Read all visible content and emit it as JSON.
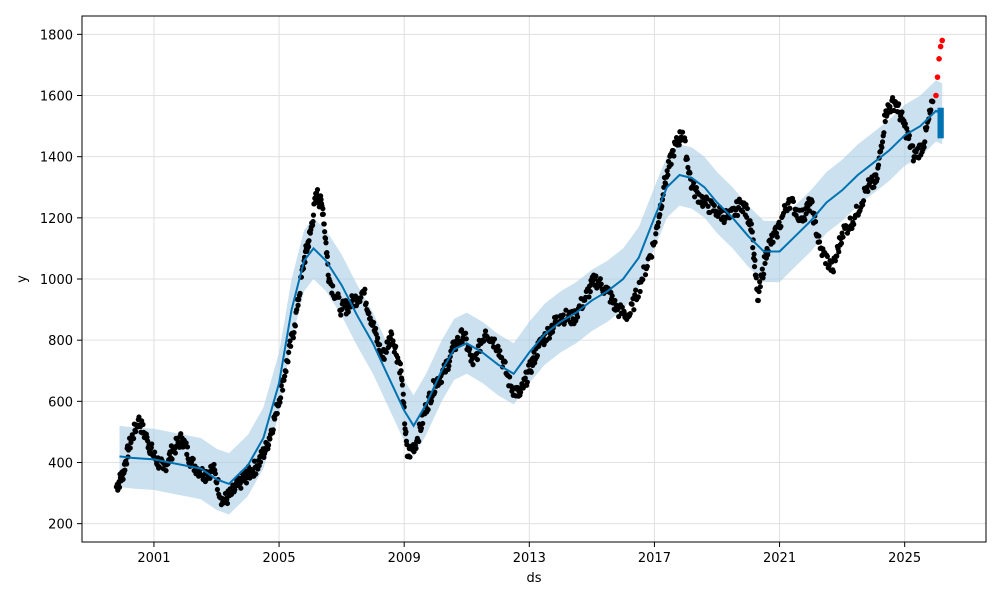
{
  "chart_data": {
    "type": "line",
    "title": "",
    "xlabel": "ds",
    "ylabel": "y",
    "xlim": [
      1998.7,
      2027.6
    ],
    "ylim": [
      140,
      1860
    ],
    "x_ticks": [
      2001,
      2005,
      2009,
      2013,
      2017,
      2021,
      2025
    ],
    "x_tick_labels": [
      "2001",
      "2005",
      "2009",
      "2013",
      "2017",
      "2021",
      "2025"
    ],
    "y_ticks": [
      200,
      400,
      600,
      800,
      1000,
      1200,
      1400,
      1600,
      1800
    ],
    "y_tick_labels": [
      "200",
      "400",
      "600",
      "800",
      "1000",
      "1200",
      "1400",
      "1600",
      "1800"
    ],
    "grid": true,
    "colors": {
      "observed": "#000000",
      "forecast": "#0072B2",
      "interval": "#A8CDE4",
      "anomaly": "#FF0000"
    },
    "forecast_x": [
      1999.9,
      2000.3,
      2001.0,
      2001.5,
      2002.0,
      2002.5,
      2003.0,
      2003.4,
      2004.0,
      2004.5,
      2005.0,
      2005.4,
      2005.8,
      2006.1,
      2006.5,
      2007.0,
      2007.5,
      2008.0,
      2008.5,
      2009.0,
      2009.3,
      2009.7,
      2010.2,
      2010.6,
      2011.0,
      2011.5,
      2012.0,
      2012.5,
      2013.0,
      2013.5,
      2014.0,
      2014.5,
      2015.0,
      2015.5,
      2016.0,
      2016.5,
      2017.0,
      2017.4,
      2017.8,
      2018.2,
      2018.6,
      2019.0,
      2019.5,
      2020.0,
      2020.5,
      2021.0,
      2021.5,
      2022.0,
      2022.5,
      2023.0,
      2023.5,
      2024.0,
      2024.5,
      2025.0,
      2025.5,
      2026.0,
      2026.2
    ],
    "forecast_y": [
      420,
      415,
      410,
      400,
      390,
      380,
      345,
      330,
      390,
      480,
      660,
      900,
      1060,
      1100,
      1060,
      980,
      880,
      790,
      680,
      570,
      520,
      590,
      700,
      770,
      790,
      760,
      720,
      690,
      760,
      820,
      860,
      890,
      930,
      960,
      1000,
      1070,
      1200,
      1300,
      1340,
      1330,
      1300,
      1250,
      1200,
      1140,
      1090,
      1090,
      1140,
      1190,
      1250,
      1290,
      1340,
      1380,
      1420,
      1470,
      1500,
      1550,
      1540
    ],
    "interval_half_width": 100,
    "observed_x": [
      1999.8,
      2000.0,
      2000.2,
      2000.5,
      2000.8,
      2001.0,
      2001.3,
      2001.6,
      2001.9,
      2002.2,
      2002.6,
      2002.9,
      2003.2,
      2003.5,
      2003.8,
      2004.0,
      2004.3,
      2004.6,
      2004.9,
      2005.2,
      2005.5,
      2005.8,
      2006.0,
      2006.2,
      2006.4,
      2006.6,
      2007.0,
      2007.3,
      2007.7,
      2008.0,
      2008.3,
      2008.6,
      2008.9,
      2009.1,
      2009.4,
      2009.7,
      2010.0,
      2010.3,
      2010.6,
      2010.9,
      2011.2,
      2011.6,
      2012.0,
      2012.4,
      2012.7,
      2013.0,
      2013.3,
      2013.7,
      2014.0,
      2014.4,
      2014.8,
      2015.1,
      2015.5,
      2015.8,
      2016.2,
      2016.6,
      2017.0,
      2017.3,
      2017.6,
      2017.9,
      2018.2,
      2018.6,
      2019.0,
      2019.4,
      2019.8,
      2020.1,
      2020.3,
      2020.6,
      2020.9,
      2021.3,
      2021.7,
      2022.0,
      2022.3,
      2022.7,
      2023.0,
      2023.4,
      2023.8,
      2024.1,
      2024.4,
      2024.7,
      2025.0,
      2025.3,
      2025.6,
      2025.9
    ],
    "observed_y": [
      320,
      360,
      450,
      540,
      470,
      420,
      380,
      440,
      480,
      400,
      360,
      380,
      270,
      300,
      340,
      360,
      390,
      450,
      560,
      700,
      850,
      1060,
      1150,
      1280,
      1230,
      1000,
      900,
      920,
      960,
      850,
      740,
      820,
      700,
      420,
      470,
      580,
      660,
      700,
      780,
      820,
      720,
      830,
      780,
      650,
      620,
      700,
      780,
      840,
      880,
      870,
      940,
      1000,
      960,
      900,
      880,
      1000,
      1120,
      1300,
      1420,
      1480,
      1300,
      1250,
      1220,
      1200,
      1250,
      1180,
      930,
      1100,
      1150,
      1260,
      1200,
      1250,
      1100,
      1030,
      1150,
      1200,
      1300,
      1320,
      1550,
      1580,
      1500,
      1400,
      1440,
      1580
    ],
    "anomaly_x": [
      2026.0,
      2026.05,
      2026.1,
      2026.15,
      2026.2
    ],
    "anomaly_y": [
      1600,
      1660,
      1720,
      1760,
      1780
    ]
  }
}
